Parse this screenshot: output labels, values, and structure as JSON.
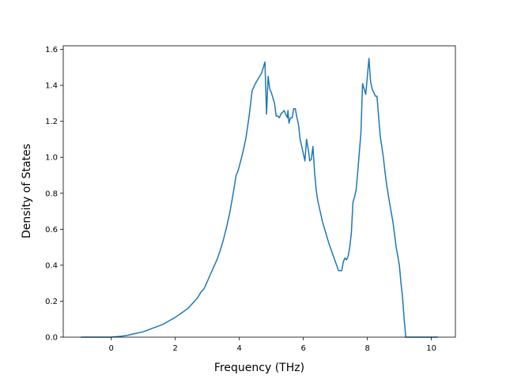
{
  "chart_data": {
    "type": "line",
    "title": "",
    "xlabel": "Frequency (THz)",
    "ylabel": "Density of States",
    "xlim": [
      -1.5,
      10.75
    ],
    "ylim": [
      0.0,
      1.62
    ],
    "xticks": [
      0,
      2,
      4,
      6,
      8,
      10
    ],
    "yticks": [
      0.0,
      0.2,
      0.4,
      0.6,
      0.8,
      1.0,
      1.2,
      1.4,
      1.6
    ],
    "xtick_labels": [
      "0",
      "2",
      "4",
      "6",
      "8",
      "10"
    ],
    "ytick_labels": [
      "0.0",
      "0.2",
      "0.4",
      "0.6",
      "0.8",
      "1.0",
      "1.2",
      "1.4",
      "1.6"
    ],
    "grid": false,
    "legend": "none",
    "line_color": "#1f77b4",
    "series": [
      {
        "x": [
          -0.95,
          -0.5,
          0.0,
          0.3,
          0.5,
          0.7,
          1.0,
          1.3,
          1.6,
          1.8,
          2.0,
          2.2,
          2.4,
          2.6,
          2.7,
          2.8,
          2.9,
          3.0,
          3.1,
          3.2,
          3.3,
          3.4,
          3.5,
          3.6,
          3.7,
          3.8,
          3.9,
          3.95,
          4.0,
          4.1,
          4.2,
          4.3,
          4.4,
          4.5,
          4.6,
          4.7,
          4.8,
          4.85,
          4.9,
          4.95,
          5.0,
          5.1,
          5.15,
          5.2,
          5.25,
          5.3,
          5.4,
          5.5,
          5.52,
          5.55,
          5.6,
          5.65,
          5.7,
          5.75,
          5.8,
          5.85,
          5.9,
          6.0,
          6.05,
          6.1,
          6.15,
          6.2,
          6.25,
          6.3,
          6.35,
          6.4,
          6.45,
          6.5,
          6.6,
          6.7,
          6.8,
          6.9,
          7.0,
          7.1,
          7.2,
          7.25,
          7.3,
          7.35,
          7.4,
          7.45,
          7.5,
          7.55,
          7.6,
          7.65,
          7.7,
          7.8,
          7.85,
          7.9,
          7.95,
          8.0,
          8.05,
          8.1,
          8.15,
          8.2,
          8.25,
          8.3,
          8.4,
          8.5,
          8.55,
          8.6,
          8.7,
          8.8,
          8.9,
          9.0,
          9.05,
          9.1,
          9.15,
          9.2,
          9.25,
          9.3,
          9.5,
          9.8,
          10.0,
          10.2
        ],
        "y": [
          0.0,
          0.0,
          0.0,
          0.005,
          0.01,
          0.018,
          0.03,
          0.05,
          0.07,
          0.09,
          0.11,
          0.135,
          0.16,
          0.2,
          0.22,
          0.25,
          0.27,
          0.31,
          0.35,
          0.39,
          0.43,
          0.48,
          0.54,
          0.61,
          0.69,
          0.79,
          0.9,
          0.92,
          0.95,
          1.02,
          1.1,
          1.22,
          1.37,
          1.41,
          1.44,
          1.47,
          1.53,
          1.24,
          1.45,
          1.38,
          1.36,
          1.3,
          1.23,
          1.23,
          1.22,
          1.24,
          1.26,
          1.22,
          1.26,
          1.19,
          1.22,
          1.22,
          1.27,
          1.27,
          1.22,
          1.18,
          1.1,
          1.02,
          0.98,
          1.1,
          1.05,
          0.98,
          0.99,
          1.06,
          0.92,
          0.82,
          0.76,
          0.72,
          0.64,
          0.58,
          0.52,
          0.47,
          0.42,
          0.37,
          0.37,
          0.42,
          0.44,
          0.43,
          0.45,
          0.5,
          0.58,
          0.75,
          0.78,
          0.82,
          0.92,
          1.14,
          1.41,
          1.38,
          1.35,
          1.45,
          1.55,
          1.42,
          1.38,
          1.36,
          1.34,
          1.34,
          1.12,
          1.0,
          0.92,
          0.85,
          0.74,
          0.64,
          0.5,
          0.4,
          0.3,
          0.22,
          0.1,
          0.0,
          0.0,
          0.0,
          0.0,
          0.0,
          0.0,
          0.0
        ]
      }
    ]
  }
}
